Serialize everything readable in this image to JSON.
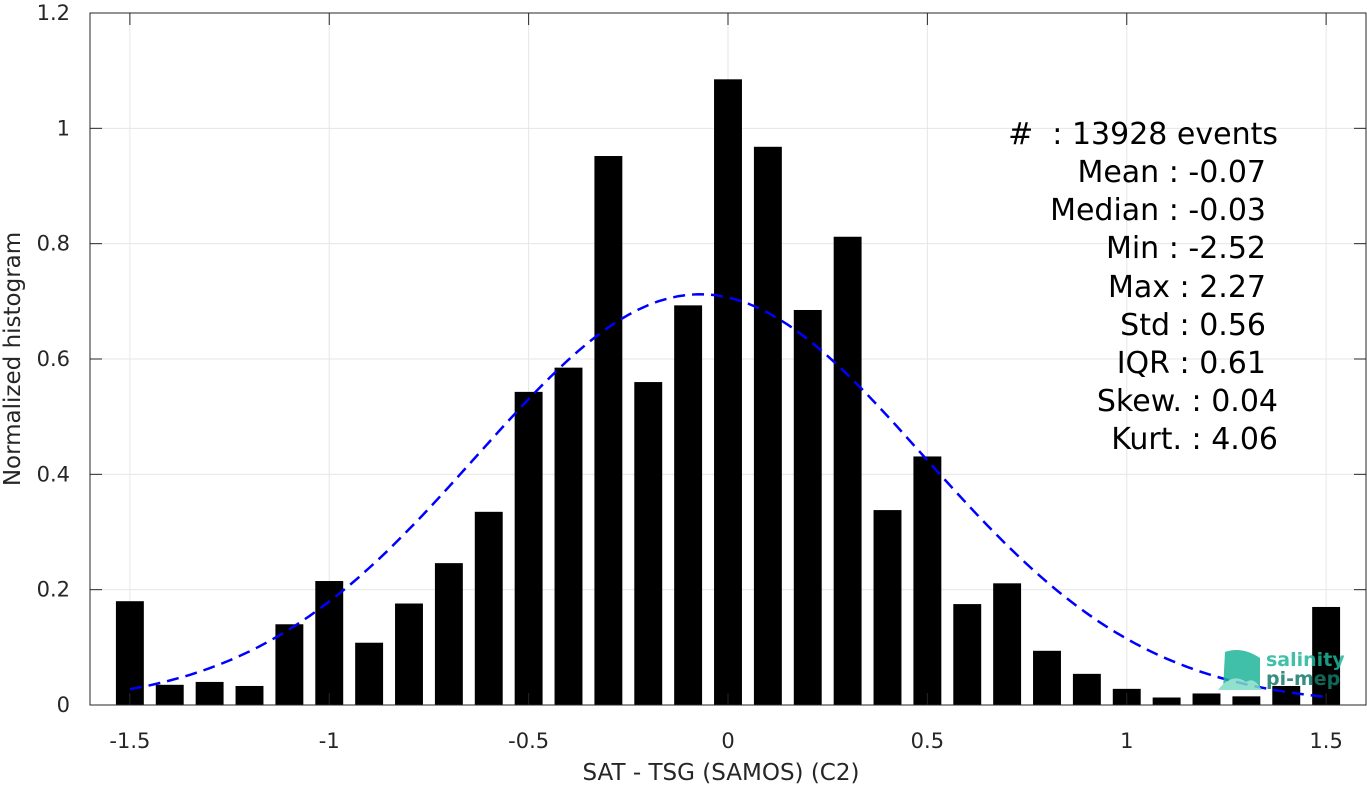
{
  "chart_data": {
    "type": "bar",
    "xlabel": "SAT - TSG (SAMOS) (C2)",
    "ylabel": "Normalized histogram",
    "xlim": [
      -1.6,
      1.6
    ],
    "ylim": [
      0,
      1.2
    ],
    "xticks": [
      "-1.5",
      "-1",
      "-0.5",
      "0",
      "0.5",
      "1",
      "1.5"
    ],
    "yticks": [
      "0",
      "0.2",
      "0.4",
      "0.6",
      "0.8",
      "1",
      "1.2"
    ],
    "grid": true,
    "bar_color": "#000000",
    "fit_color": "#0000ff",
    "bins": [
      -1.5,
      -1.4,
      -1.3,
      -1.2,
      -1.1,
      -1.0,
      -0.9,
      -0.8,
      -0.7,
      -0.6,
      -0.5,
      -0.4,
      -0.3,
      -0.2,
      -0.1,
      0.0,
      0.1,
      0.2,
      0.3,
      0.4,
      0.5,
      0.6,
      0.7,
      0.8,
      0.9,
      1.0,
      1.1,
      1.2,
      1.3,
      1.4,
      1.5
    ],
    "values": [
      0.18,
      0.035,
      0.04,
      0.033,
      0.14,
      0.215,
      0.108,
      0.176,
      0.246,
      0.335,
      0.543,
      0.585,
      0.952,
      0.56,
      0.693,
      1.085,
      0.968,
      0.685,
      0.812,
      0.338,
      0.431,
      0.175,
      0.211,
      0.094,
      0.054,
      0.028,
      0.013,
      0.02,
      0.015,
      0.033,
      0.17
    ],
    "fit_curve": {
      "type": "normal",
      "mean": -0.07,
      "std": 0.56,
      "style": "dashed",
      "x_range": [
        -1.5,
        1.5
      ]
    },
    "stats": {
      "count": "#  : 13928 events",
      "mean": "Mean : -0.07",
      "median": "Median : -0.03",
      "min": "Min : -2.52",
      "max": "Max : 2.27",
      "std": "Std : 0.56",
      "iqr": "IQR : 0.61",
      "skew": "Skew. : 0.04",
      "kurt": "Kurt. : 4.06"
    }
  },
  "logo": {
    "line1": "salinity",
    "line2": "pi-mep",
    "color": "#1fb59b"
  }
}
